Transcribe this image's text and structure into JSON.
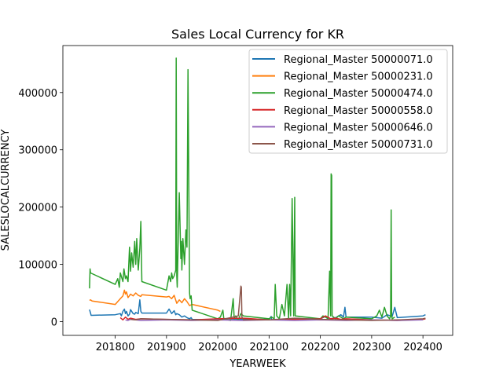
{
  "chart_data": {
    "type": "line",
    "title": "Sales Local Currency for KR",
    "xlabel": "YEARWEEK",
    "ylabel": "SALESLOCALCURRENCY",
    "xlim": [
      201698,
      202458
    ],
    "ylim": [
      -24000,
      482000
    ],
    "xticks": [
      201800,
      201900,
      202000,
      202100,
      202200,
      202300,
      202400
    ],
    "yticks": [
      0,
      100000,
      200000,
      300000,
      400000
    ],
    "grid": false,
    "legend_position": "top-right",
    "series": [
      {
        "name": "Regional_Master 50000071.0",
        "color": "#1f77b4",
        "x": [
          201750,
          201752,
          201753,
          201800,
          201810,
          201812,
          201815,
          201818,
          201820,
          201822,
          201825,
          201828,
          201830,
          201835,
          201838,
          201840,
          201845,
          201848,
          201850,
          201852,
          201900,
          201905,
          201910,
          201915,
          201918,
          201920,
          201925,
          201930,
          201935,
          201940,
          201945,
          201948,
          201950,
          202000,
          202050,
          202100,
          202104,
          202105,
          202150,
          202200,
          202210,
          202220,
          202230,
          202240,
          202245,
          202248,
          202250,
          202300,
          202320,
          202330,
          202340,
          202345,
          202350,
          202400,
          202405
        ],
        "y": [
          21000,
          15000,
          11000,
          12000,
          14000,
          10000,
          18000,
          22000,
          14000,
          18000,
          10000,
          13000,
          21000,
          14000,
          13000,
          16000,
          14000,
          38000,
          18000,
          15000,
          15000,
          22000,
          14000,
          19000,
          12000,
          14000,
          12000,
          8000,
          10000,
          7000,
          5000,
          7000,
          4000,
          3000,
          4000,
          4000,
          9000,
          3000,
          5000,
          5000,
          9000,
          5000,
          7000,
          12000,
          8000,
          25000,
          8000,
          8000,
          6000,
          12000,
          9000,
          25000,
          7000,
          10000,
          12000
        ]
      },
      {
        "name": "Regional_Master 50000231.0",
        "color": "#ff7f0e",
        "x": [
          201750,
          201752,
          201755,
          201800,
          201805,
          201810,
          201815,
          201818,
          201820,
          201822,
          201825,
          201830,
          201835,
          201840,
          201845,
          201850,
          201852,
          201900,
          201905,
          201910,
          201915,
          201920,
          201925,
          201930,
          201935,
          201940,
          201945,
          201950,
          202000,
          202005
        ],
        "y": [
          37000,
          38000,
          36000,
          30000,
          35000,
          40000,
          45000,
          55000,
          48000,
          52000,
          42000,
          48000,
          45000,
          50000,
          46000,
          44000,
          47000,
          43000,
          44000,
          40000,
          46000,
          32000,
          38000,
          33000,
          40000,
          35000,
          28000,
          30000,
          20000,
          18000
        ]
      },
      {
        "name": "Regional_Master 50000474.0",
        "color": "#2ca02c",
        "x": [
          201750,
          201751,
          201752,
          201800,
          201805,
          201808,
          201810,
          201815,
          201817,
          201820,
          201822,
          201825,
          201828,
          201830,
          201832,
          201835,
          201838,
          201840,
          201842,
          201845,
          201848,
          201850,
          201852,
          201900,
          201905,
          201908,
          201910,
          201912,
          201915,
          201918,
          201919,
          201920,
          201921,
          201925,
          201928,
          201929,
          201930,
          201932,
          201935,
          201938,
          201940,
          201942,
          201945,
          201946,
          201948,
          201950,
          202000,
          202005,
          202010,
          202012,
          202015,
          202020,
          202025,
          202030,
          202032,
          202035,
          202040,
          202045,
          202050,
          202100,
          202105,
          202110,
          202112,
          202115,
          202120,
          202125,
          202130,
          202135,
          202138,
          202140,
          202142,
          202145,
          202148,
          202149,
          202150,
          202151,
          202200,
          202205,
          202210,
          202215,
          202218,
          202220,
          202221,
          202222,
          202223,
          202230,
          202235,
          202240,
          202245,
          202250,
          202300,
          202310,
          202315,
          202320,
          202325,
          202330,
          202335,
          202337,
          202338,
          202339,
          202340,
          202345
        ],
        "y": [
          58000,
          92000,
          85000,
          65000,
          75000,
          60000,
          85000,
          70000,
          92000,
          75000,
          80000,
          70000,
          130000,
          88000,
          120000,
          95000,
          140000,
          100000,
          145000,
          90000,
          128000,
          175000,
          70000,
          55000,
          80000,
          70000,
          85000,
          75000,
          80000,
          90000,
          460000,
          80000,
          60000,
          225000,
          110000,
          140000,
          90000,
          145000,
          100000,
          160000,
          130000,
          440000,
          50000,
          40000,
          45000,
          20000,
          5000,
          8000,
          20000,
          3000,
          5000,
          3000,
          2000,
          40000,
          5000,
          10000,
          3000,
          14000,
          10000,
          5000,
          8000,
          5000,
          65000,
          10000,
          5000,
          30000,
          10000,
          65000,
          5000,
          65000,
          10000,
          215000,
          10000,
          115000,
          217000,
          10000,
          5000,
          10000,
          8000,
          5000,
          88000,
          10000,
          258000,
          255000,
          10000,
          5000,
          10000,
          8000,
          5000,
          8000,
          5000,
          10000,
          20000,
          8000,
          25000,
          10000,
          5000,
          10000,
          195000,
          10000,
          5000,
          8000
        ]
      },
      {
        "name": "Regional_Master 50000558.0",
        "color": "#d62728",
        "x": [
          201810,
          201815,
          201820,
          201825,
          201830,
          201835,
          201840,
          201850,
          201900,
          201950,
          202000,
          202050,
          202100,
          202150,
          202200,
          202210,
          202220,
          202230,
          202240,
          202250,
          202300,
          202350,
          202400,
          202405
        ],
        "y": [
          7000,
          3000,
          8000,
          4000,
          6000,
          5000,
          4000,
          5000,
          4000,
          3000,
          5000,
          6000,
          3000,
          4000,
          5000,
          10000,
          5000,
          6000,
          4000,
          5000,
          3000,
          2000,
          4000,
          5000
        ]
      },
      {
        "name": "Regional_Master 50000646.0",
        "color": "#9467bd",
        "x": [
          201820,
          201825,
          201830,
          201840,
          201850,
          201900,
          201950,
          202000,
          202050,
          202100,
          202150,
          202200,
          202250,
          202300,
          202350,
          202400
        ],
        "y": [
          3000,
          2000,
          4000,
          3000,
          2000,
          3000,
          2000,
          3000,
          2000,
          3000,
          2000,
          3000,
          2000,
          3000,
          2000,
          3000
        ]
      },
      {
        "name": "Regional_Master 50000731.0",
        "color": "#8c564b",
        "x": [
          201830,
          201840,
          201850,
          201900,
          201950,
          202000,
          202040,
          202045,
          202046,
          202047,
          202050,
          202100,
          202150,
          202200,
          202250,
          202300,
          202350,
          202400,
          202405
        ],
        "y": [
          4000,
          3000,
          5000,
          4000,
          3000,
          2000,
          10000,
          62000,
          60000,
          8000,
          3000,
          3000,
          6000,
          4000,
          3000,
          2000,
          3000,
          5000,
          6000
        ]
      }
    ]
  }
}
